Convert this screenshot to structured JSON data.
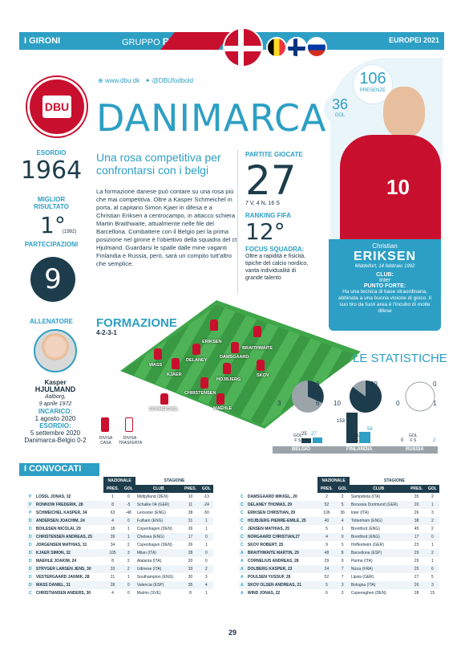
{
  "header": {
    "section": "I GIRONI",
    "group_label": "GRUPPO",
    "group_letter": "B",
    "tournament": "EUROPEI 2021"
  },
  "social": {
    "web": "www.dbu.dk",
    "twitter": "@DBUfodbold"
  },
  "team": {
    "name": "DANIMARCA",
    "logo_text": "DBU"
  },
  "stats_left": {
    "esordio_label": "ESORDIO",
    "esordio": "1964",
    "miglior_label": "MIGLIOR RISULTATO",
    "miglior": "1°",
    "miglior_year": "(1992)",
    "partecipazioni_label": "PARTECIPAZIONI",
    "partecipazioni": "9",
    "allenatore_label": "ALLENATORE",
    "coach_first": "Kasper",
    "coach_last": "HJULMAND",
    "coach_born_place": "Aalborg,",
    "coach_born_date": "9 aprile 1972",
    "incarico_label": "INCARICO:",
    "incarico": "1 agosto 2020",
    "esordio2_label": "ESORDIO:",
    "esordio2_date": "5 settembre 2020",
    "esordio2_match": "Danimarca-Belgio 0-2"
  },
  "headline": "Una rosa competitiva per confrontarsi con i belgi",
  "body": "La formazione danese può contare su una rosa più che mai competitiva. Oltre a Kasper Schmeichel in porta, al capitano Simon Kjaer in difesa e a Christian Eriksen a centrocampo, in attacco schiera Martin Braithwaite, attualmente nelle file del Barcellona. Combattere con il Belgio per la prima posizione nel girone è l'obiettivo della squadra del ct Hjulmand. Guardarsi le spalle dalle mine vaganti Finlandia e Russia, però, sarà un compito tutt'altro che semplice.",
  "partite": {
    "label": "PARTITE GIOCATE",
    "value": "27",
    "detail": "7 V, 4 N, 16 S"
  },
  "ranking": {
    "label": "RANKING FIFA",
    "value": "12°"
  },
  "focus": {
    "label": "FOCUS SQUADRA:",
    "text": "Oltre a rapidità e fisicità, tipiche del calcio nordico, vanta individualità di grande talento"
  },
  "star": {
    "presenze": "106",
    "presenze_label": "PRESENZE",
    "gol": "36",
    "gol_label": "GOL",
    "first": "Christian",
    "last": "ERIKSEN",
    "born": "Middelfort, 14 febbraio 1992",
    "club_label": "CLUB:",
    "club": "Inter",
    "forte_label": "PUNTO FORTE:",
    "forte": "Ha una tecnica di base straordinaria, abbinata a una buona visione di gioco. Il suo tiro da fuori area è l'incubo di molte difese",
    "shirt": "10"
  },
  "formazione": {
    "title": "FORMAZIONE",
    "module": "4-2-3-1",
    "players": [
      "ERIKSEN",
      "BRAITHWAITE",
      "DAMSGAARD",
      "DELANEY",
      "WASS",
      "KJAER",
      "HOJBJERG",
      "SKOV",
      "CHRISTENSEN",
      "SCHMEICHEL",
      "MAEHLE"
    ],
    "home_label": "DIVISA CASA",
    "away_label": "DIVISA TRASFERTA"
  },
  "statistiche": {
    "title": "LE STATISTICHE",
    "teams": [
      {
        "name": "BELGIO",
        "v": "6",
        "n": "3",
        "p": "6",
        "gf": "25",
        "gs": "27"
      },
      {
        "name": "FINLANDIA",
        "v": "39",
        "n": "10",
        "p": "10",
        "gf": "153",
        "gs": "58"
      },
      {
        "name": "RUSSIA",
        "v": "0",
        "n": "0",
        "p": "1",
        "gf": "0",
        "gs": "2"
      }
    ],
    "v": "V",
    "n": "N",
    "p": "P",
    "gol": "GOL",
    "f": "F",
    "s": "S"
  },
  "convocati": {
    "title": "I CONVOCATI",
    "h_naz": "NAZIONALE",
    "h_stag": "STAGIONE",
    "h_pres": "PRES.",
    "h_gol": "GOL",
    "h_club": "CLUB",
    "left": [
      [
        "P",
        "LOSSL JONAS, 32",
        "1",
        "0",
        "Midtjylland (DEN)",
        "10",
        "-13"
      ],
      [
        "P",
        "RONNOW FREDERIK, 28",
        "8",
        "-5",
        "Schalke 04 (GER)",
        "11",
        "-24"
      ],
      [
        "P",
        "SCHMEICHEL KASPER, 34",
        "63",
        "-48",
        "Leicester (ENG)",
        "38",
        "-50"
      ],
      [
        "D",
        "ANDERSEN JOACHIM, 24",
        "4",
        "0",
        "Fulham (ENG)",
        "31",
        "1"
      ],
      [
        "D",
        "BOILESEN NICOLAI, 29",
        "18",
        "1",
        "Copenhagen (DEN)",
        "26",
        "1"
      ],
      [
        "D",
        "CHRISTENSEN ANDREAS, 25",
        "39",
        "1",
        "Chelsea (ENG)",
        "17",
        "0"
      ],
      [
        "D",
        "JORGENSEN MATHIAS, 31",
        "34",
        "2",
        "Copenhagen (DEN)",
        "26",
        "1"
      ],
      [
        "D",
        "KJAER SIMON, 32",
        "105",
        "3",
        "Milan (ITA)",
        "28",
        "0"
      ],
      [
        "D",
        "MAEHLE JOAKIM, 24",
        "8",
        "2",
        "Atalanta (ITA)",
        "20",
        "0"
      ],
      [
        "D",
        "STRYGER LARSEN JENS, 30",
        "33",
        "2",
        "Udinese (ITA)",
        "33",
        "2"
      ],
      [
        "D",
        "VESTERGAARD JANNIK, 28",
        "21",
        "1",
        "Southampton (ENG)",
        "30",
        "3"
      ],
      [
        "D",
        "WASS DANIEL, 31",
        "28",
        "0",
        "Valencia (ESP)",
        "35",
        "4"
      ],
      [
        "C",
        "CHRISTIANSEN ANDERS, 30",
        "4",
        "0",
        "Malmo (SVE)",
        "8",
        "1"
      ]
    ],
    "right": [
      [
        "C",
        "DAMSGAARD MIKKEL, 20",
        "2",
        "2",
        "Sampdoria (ITA)",
        "35",
        "2"
      ],
      [
        "C",
        "DELANEY THOMAS, 29",
        "52",
        "5",
        "Borussia Dortmund (GER)",
        "20",
        "1"
      ],
      [
        "C",
        "ERIKSEN CHRISTIAN, 29",
        "106",
        "36",
        "Inter (ITA)",
        "26",
        "3"
      ],
      [
        "C",
        "HOJBJERG PIERRE-EMILE, 25",
        "40",
        "4",
        "Tottenham (ENG)",
        "38",
        "2"
      ],
      [
        "C",
        "JENSEN MATHIAS, 25",
        "5",
        "1",
        "Brentford (ENG)",
        "45",
        "2"
      ],
      [
        "C",
        "NORGAARD CHRISTIAN,27",
        "4",
        "0",
        "Brentford (ENG)",
        "17",
        "0"
      ],
      [
        "C",
        "SKOV ROBERT, 25",
        "9",
        "5",
        "Hoffenheim (GER)",
        "23",
        "1"
      ],
      [
        "A",
        "BRAITHWAITE MARTIN, 29",
        "48",
        "8",
        "Barcellona (ESP)",
        "29",
        "2"
      ],
      [
        "A",
        "CORNELIUS ANDREAS, 28",
        "29",
        "9",
        "Parma (ITA)",
        "29",
        "1"
      ],
      [
        "A",
        "DOLBERG KASPER, 23",
        "24",
        "7",
        "Nizza (FRA)",
        "25",
        "6"
      ],
      [
        "A",
        "POULSEN YUSSUF, 26",
        "52",
        "7",
        "Lipsia (GER)",
        "27",
        "5"
      ],
      [
        "A",
        "SKOV OLSEN ANDREAS, 21",
        "5",
        "3",
        "Bologna (ITA)",
        "26",
        "3"
      ],
      [
        "A",
        "WIND JONAS, 22",
        "6",
        "3",
        "Copenaghen (DEN)",
        "28",
        "15"
      ]
    ]
  },
  "page_number": "29"
}
